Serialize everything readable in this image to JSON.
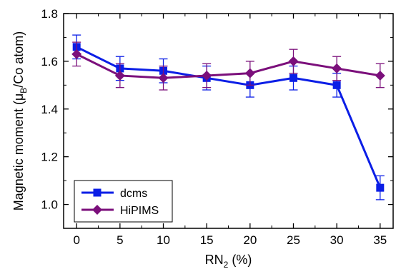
{
  "chart_data": {
    "type": "line",
    "x": [
      0,
      5,
      10,
      15,
      20,
      25,
      30,
      35
    ],
    "xticks": [
      "0",
      "5",
      "10",
      "15",
      "20",
      "25",
      "30",
      "35"
    ],
    "yticks": [
      "1.0",
      "1.2",
      "1.4",
      "1.6",
      "1.8"
    ],
    "xlim": [
      -1.5,
      36.5
    ],
    "ylim": [
      0.9,
      1.8
    ],
    "xlabel_main": "RN",
    "xlabel_sub": "2",
    "xlabel_rest": " (%)",
    "ylabel_main": "Magnetic moment (μ",
    "ylabel_sub": "B",
    "ylabel_rest": "/Co atom)",
    "legend_position": "bottom-left",
    "series": [
      {
        "name": "dcms",
        "color": "#0b1ee6",
        "marker": "square",
        "values": [
          1.66,
          1.57,
          1.56,
          1.53,
          1.5,
          1.53,
          1.5,
          1.07
        ],
        "errors": [
          0.05,
          0.05,
          0.05,
          0.05,
          0.05,
          0.05,
          0.05,
          0.05
        ]
      },
      {
        "name": "HiPIMS",
        "color": "#7b0f7b",
        "marker": "diamond",
        "values": [
          1.63,
          1.54,
          1.53,
          1.54,
          1.55,
          1.6,
          1.57,
          1.54
        ],
        "errors": [
          0.05,
          0.05,
          0.05,
          0.05,
          0.05,
          0.05,
          0.05,
          0.05
        ]
      }
    ]
  }
}
